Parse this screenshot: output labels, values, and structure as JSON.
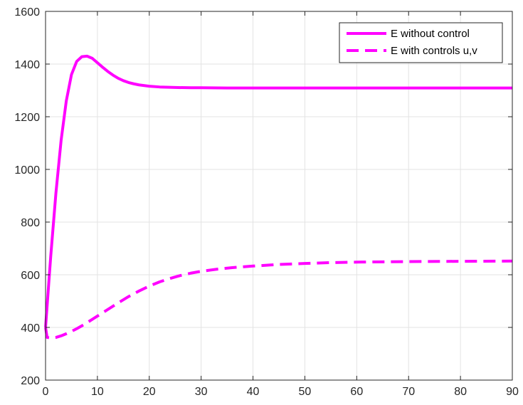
{
  "chart_data": {
    "type": "line",
    "title": "",
    "xlabel": "",
    "ylabel": "",
    "xlim": [
      0,
      90
    ],
    "ylim": [
      200,
      1600
    ],
    "xticks": [
      0,
      10,
      20,
      30,
      40,
      50,
      60,
      70,
      80,
      90
    ],
    "yticks": [
      200,
      400,
      600,
      800,
      1000,
      1200,
      1400,
      1600
    ],
    "grid": true,
    "legend_position": "top-right",
    "series": [
      {
        "name": "E without control",
        "color": "#ff00ff",
        "style": "solid",
        "x": [
          0,
          1,
          2,
          3,
          4,
          5,
          6,
          7,
          8,
          9,
          10,
          11,
          12,
          13,
          14,
          15,
          16,
          17,
          18,
          20,
          22,
          25,
          28,
          30,
          35,
          40,
          50,
          60,
          70,
          80,
          90
        ],
        "y": [
          400,
          670,
          910,
          1110,
          1260,
          1360,
          1410,
          1428,
          1430,
          1422,
          1405,
          1388,
          1372,
          1358,
          1346,
          1337,
          1330,
          1325,
          1321,
          1316,
          1313,
          1311,
          1310,
          1310,
          1309,
          1309,
          1309,
          1309,
          1309,
          1309,
          1309
        ]
      },
      {
        "name": "E with controls u,v",
        "color": "#ff00ff",
        "style": "dashed",
        "x": [
          0,
          0.3,
          1,
          2,
          3,
          4,
          5,
          6,
          7,
          8,
          10,
          12,
          14,
          16,
          18,
          20,
          22,
          24,
          26,
          28,
          30,
          33,
          36,
          40,
          45,
          50,
          55,
          60,
          70,
          80,
          90
        ],
        "y": [
          400,
          362,
          360,
          362,
          368,
          376,
          385,
          395,
          406,
          418,
          443,
          468,
          493,
          517,
          538,
          557,
          573,
          586,
          597,
          606,
          613,
          621,
          627,
          633,
          639,
          643,
          646,
          648,
          650,
          651,
          652
        ]
      }
    ]
  }
}
